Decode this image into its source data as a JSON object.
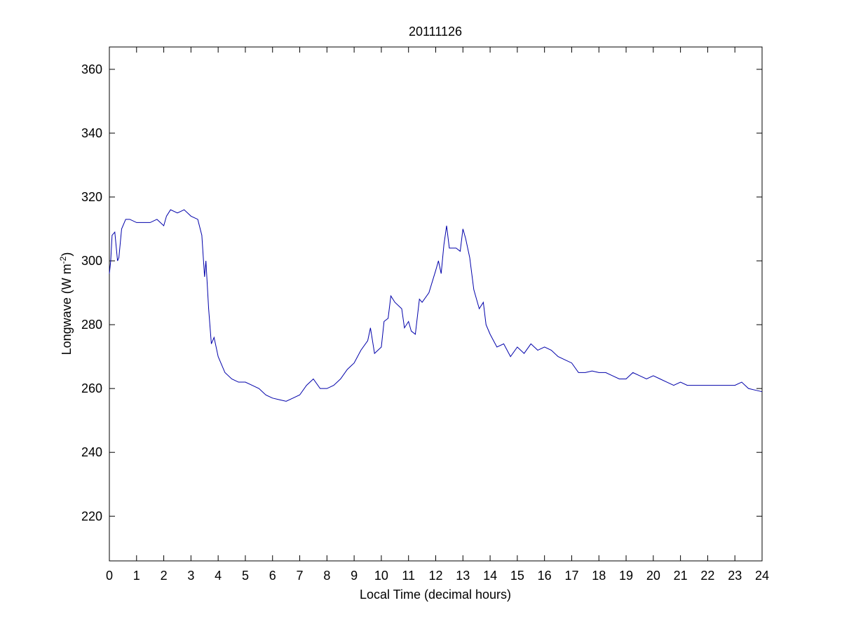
{
  "chart_data": {
    "type": "line",
    "title": "20111126",
    "xlabel": "Local Time (decimal hours)",
    "ylabel": [
      "Longwave (W m",
      "-2",
      ")"
    ],
    "x": [
      0,
      0.05,
      0.1,
      0.2,
      0.3,
      0.35,
      0.45,
      0.6,
      0.75,
      1,
      1.25,
      1.5,
      1.75,
      2,
      2.1,
      2.25,
      2.5,
      2.75,
      3,
      3.25,
      3.4,
      3.5,
      3.55,
      3.65,
      3.75,
      3.85,
      4,
      4.25,
      4.5,
      4.75,
      5,
      5.25,
      5.5,
      5.75,
      6,
      6.25,
      6.5,
      6.75,
      7,
      7.25,
      7.5,
      7.75,
      8,
      8.25,
      8.5,
      8.75,
      9,
      9.25,
      9.5,
      9.6,
      9.75,
      10,
      10.1,
      10.25,
      10.35,
      10.5,
      10.75,
      10.85,
      11,
      11.1,
      11.25,
      11.4,
      11.5,
      11.75,
      12,
      12.1,
      12.2,
      12.3,
      12.4,
      12.5,
      12.75,
      12.9,
      13,
      13.1,
      13.25,
      13.4,
      13.6,
      13.75,
      13.85,
      14,
      14.25,
      14.5,
      14.75,
      15,
      15.25,
      15.5,
      15.75,
      16,
      16.25,
      16.5,
      16.75,
      17,
      17.25,
      17.5,
      17.75,
      18,
      18.25,
      18.5,
      18.75,
      19,
      19.25,
      19.5,
      19.75,
      20,
      20.25,
      20.5,
      20.75,
      21,
      21.25,
      21.5,
      21.75,
      22,
      22.25,
      22.5,
      22.75,
      23,
      23.25,
      23.5,
      23.75,
      24
    ],
    "series": [
      {
        "name": "Longwave",
        "color": "#0000aa",
        "values": [
          296,
          300,
          308,
          309,
          300,
          301,
          310,
          313,
          313,
          312,
          312,
          312,
          313,
          311,
          314,
          316,
          315,
          316,
          314,
          313,
          308,
          295,
          300,
          285,
          274,
          276,
          270,
          265,
          263,
          262,
          262,
          261,
          260,
          258,
          257,
          256.5,
          256,
          257,
          258,
          261,
          263,
          260,
          260,
          261,
          263,
          266,
          268,
          272,
          275,
          279,
          271,
          273,
          281,
          282,
          289,
          287,
          285,
          279,
          281,
          278,
          277,
          288,
          287,
          290,
          297,
          300,
          296,
          305,
          311,
          304,
          304,
          303,
          310,
          307,
          301,
          291,
          285,
          287,
          280,
          277,
          273,
          274,
          270,
          273,
          271,
          274,
          272,
          273,
          272,
          270,
          269,
          268,
          265,
          265,
          265.5,
          265,
          265,
          264,
          263,
          263,
          265,
          264,
          263,
          264,
          263,
          262,
          261,
          262,
          261,
          261,
          261,
          261,
          261,
          261,
          261,
          261,
          262,
          260,
          259.5,
          259
        ]
      }
    ],
    "xlim": [
      0,
      24
    ],
    "ylim": [
      206,
      367
    ],
    "xticks": [
      0,
      1,
      2,
      3,
      4,
      5,
      6,
      7,
      8,
      9,
      10,
      11,
      12,
      13,
      14,
      15,
      16,
      17,
      18,
      19,
      20,
      21,
      22,
      23,
      24
    ],
    "yticks": [
      220,
      240,
      260,
      280,
      300,
      320,
      340,
      360
    ]
  }
}
